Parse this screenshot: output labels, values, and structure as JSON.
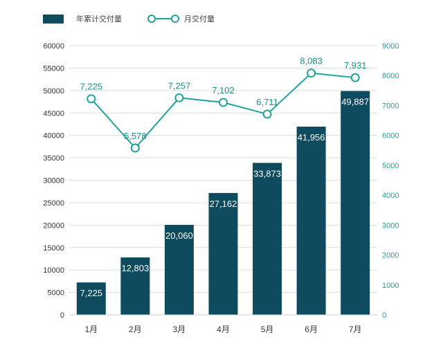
{
  "colors": {
    "bar": "#0e4b5e",
    "line": "#1fa39a",
    "grid": "#dddddd",
    "axis": "#cccccc"
  },
  "chart_data": {
    "type": "bar",
    "categories": [
      "1月",
      "2月",
      "3月",
      "4月",
      "5月",
      "6月",
      "7月"
    ],
    "series": [
      {
        "name": "年累计交付量",
        "type": "bar",
        "axis": "left",
        "values": [
          7225,
          12803,
          20060,
          27162,
          33873,
          41956,
          49887
        ],
        "labels": [
          "7,225",
          "12,803",
          "20,060",
          "27,162",
          "33,873",
          "41,956",
          "49,887"
        ]
      },
      {
        "name": "月交付量",
        "type": "line",
        "axis": "right",
        "values": [
          7225,
          5578,
          7257,
          7102,
          6711,
          8083,
          7931
        ],
        "labels": [
          "7,225",
          "5,578",
          "7,257",
          "7,102",
          "6,711",
          "8,083",
          "7,931"
        ]
      }
    ],
    "y_left": {
      "min": 0,
      "max": 60000,
      "ticks": [
        "0",
        "5000",
        "10000",
        "15000",
        "20000",
        "25000",
        "30000",
        "35000",
        "40000",
        "45000",
        "50000",
        "55000",
        "60000"
      ]
    },
    "y_right": {
      "min": 0,
      "max": 9000,
      "ticks": [
        "0",
        "1000",
        "2000",
        "3000",
        "4000",
        "5000",
        "6000",
        "7000",
        "8000",
        "9000"
      ]
    },
    "legend": {
      "position": "top-left"
    },
    "grid": true
  }
}
